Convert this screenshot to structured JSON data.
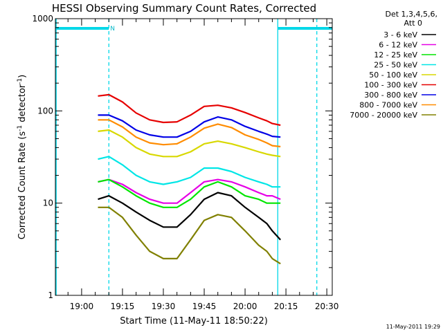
{
  "chart_data": {
    "type": "line",
    "title": "HESSI Observing Summary Count Rates, Corrected",
    "xlabel": "Start Time (11-May-11 18:50:22)",
    "ylabel_parts": [
      "Corrected Count Rate (s",
      "-1",
      " detector",
      "-1",
      ")"
    ],
    "y_scale": "log",
    "ylim": [
      1,
      1000
    ],
    "y_ticks": [
      {
        "value": 1,
        "label": "1"
      },
      {
        "value": 10,
        "label": "10"
      },
      {
        "value": 100,
        "label": "100"
      },
      {
        "value": 1000,
        "label": "1000"
      }
    ],
    "x_range": [
      "18:50:22",
      "20:32:00"
    ],
    "x_ticks": [
      "19:00",
      "19:15",
      "19:30",
      "19:45",
      "20:00",
      "20:15",
      "20:30"
    ],
    "legend_header": [
      "Det 1,3,4,5,6,",
      "Att 0"
    ],
    "legend_position": "right",
    "footer_date": "11-May-2011 19:29",
    "observing_bars": [
      {
        "start": "18:50:22",
        "end": "19:10:00",
        "flag": "N"
      },
      {
        "start": "20:12:00",
        "end": "20:32:00",
        "flag": ""
      }
    ],
    "markers": [
      {
        "time": "18:50:40",
        "color": "#00d8e8",
        "style": "solid"
      },
      {
        "time": "19:10:00",
        "color": "#00d8e8",
        "style": "dashed"
      },
      {
        "time": "20:12:00",
        "color": "#00d8e8",
        "style": "solid"
      },
      {
        "time": "20:26:20",
        "color": "#00d8e8",
        "style": "dashed"
      }
    ],
    "x": [
      "19:06",
      "19:10",
      "19:15",
      "19:20",
      "19:25",
      "19:30",
      "19:35",
      "19:40",
      "19:45",
      "19:50",
      "19:55",
      "20:00",
      "20:05",
      "20:08",
      "20:10",
      "20:13"
    ],
    "series": [
      {
        "name": "3 - 6 keV",
        "color": "#000000",
        "values": [
          11,
          12,
          10,
          8,
          6.5,
          5.5,
          5.5,
          7.5,
          11,
          13,
          12,
          9,
          7,
          6,
          5,
          4
        ]
      },
      {
        "name": "6 - 12 keV",
        "color": "#e600e6",
        "values": [
          17,
          18,
          16,
          13,
          11,
          10,
          10,
          13,
          17,
          18,
          17,
          15,
          13,
          12,
          12,
          11
        ]
      },
      {
        "name": "12 - 25 keV",
        "color": "#00e600",
        "values": [
          17,
          18,
          15,
          12,
          10,
          9,
          9,
          11,
          15,
          17,
          15,
          12,
          11,
          10,
          10,
          10
        ]
      },
      {
        "name": "25 - 50 keV",
        "color": "#00e6e6",
        "values": [
          30,
          32,
          26,
          20,
          17,
          16,
          17,
          19,
          24,
          24,
          22,
          19,
          17,
          16,
          15,
          15
        ]
      },
      {
        "name": "50 - 100 keV",
        "color": "#d8d800",
        "values": [
          60,
          62,
          52,
          40,
          34,
          32,
          32,
          36,
          44,
          47,
          44,
          40,
          36,
          34,
          33,
          32
        ]
      },
      {
        "name": "100 - 300 keV",
        "color": "#e60000",
        "values": [
          145,
          150,
          125,
          95,
          80,
          75,
          76,
          90,
          112,
          115,
          108,
          96,
          84,
          78,
          73,
          70
        ]
      },
      {
        "name": "300 - 800 keV",
        "color": "#0000e6",
        "values": [
          90,
          90,
          78,
          62,
          55,
          52,
          52,
          60,
          76,
          86,
          80,
          68,
          60,
          56,
          53,
          52
        ]
      },
      {
        "name": "800 - 7000 keV",
        "color": "#ff8c00",
        "values": [
          80,
          80,
          67,
          52,
          45,
          43,
          44,
          52,
          65,
          72,
          66,
          55,
          49,
          45,
          42,
          41
        ]
      },
      {
        "name": "7000 - 20000 keV",
        "color": "#808000",
        "values": [
          9,
          9,
          7,
          4.5,
          3,
          2.5,
          2.5,
          4,
          6.5,
          7.5,
          7,
          5,
          3.5,
          3,
          2.5,
          2.2
        ]
      }
    ]
  }
}
